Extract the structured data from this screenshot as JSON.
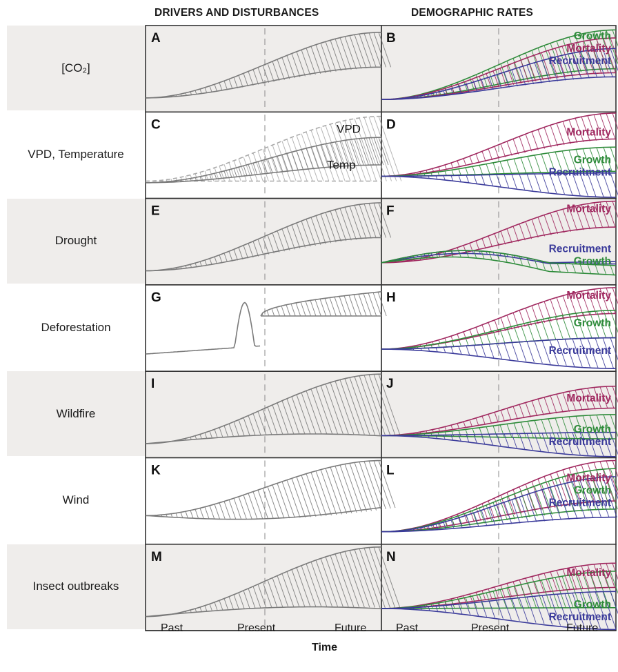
{
  "headers": {
    "left": "DRIVERS AND DISTURBANCES",
    "right": "DEMOGRAPHIC RATES"
  },
  "rows": [
    {
      "label": "[CO₂]",
      "left_panel": "A",
      "right_panel": "B",
      "left_series": [],
      "right_series": [
        "Growth",
        "Mortality",
        "Recruitment"
      ]
    },
    {
      "label": "VPD, Temperature",
      "left_panel": "C",
      "right_panel": "D",
      "left_series": [
        "VPD",
        "Temp"
      ],
      "right_series": [
        "Mortality",
        "Growth",
        "Recruitment"
      ]
    },
    {
      "label": "Drought",
      "left_panel": "E",
      "right_panel": "F",
      "left_series": [],
      "right_series": [
        "Mortality",
        "Recruitment",
        "Growth"
      ]
    },
    {
      "label": "Deforestation",
      "left_panel": "G",
      "right_panel": "H",
      "left_series": [],
      "right_series": [
        "Mortality",
        "Growth",
        "Recruitment"
      ]
    },
    {
      "label": "Wildfire",
      "left_panel": "I",
      "right_panel": "J",
      "left_series": [],
      "right_series": [
        "Mortality",
        "Growth",
        "Recruitment"
      ]
    },
    {
      "label": "Wind",
      "left_panel": "K",
      "right_panel": "L",
      "left_series": [],
      "right_series": [
        "Mortality",
        "Growth",
        "Recruitment"
      ]
    },
    {
      "label": "Insect outbreaks",
      "left_panel": "M",
      "right_panel": "N",
      "left_series": [],
      "right_series": [
        "Mortality",
        "Growth",
        "Recruitment"
      ]
    }
  ],
  "x_ticks": [
    "Past",
    "Present",
    "Future"
  ],
  "x_axis_title": "Time",
  "colors": {
    "growth": "#2e8b3a",
    "mortality": "#a0285f",
    "recruitment": "#3a3a9a",
    "neutral": "#7a7a7a",
    "panel_bg": "#efedeb"
  }
}
